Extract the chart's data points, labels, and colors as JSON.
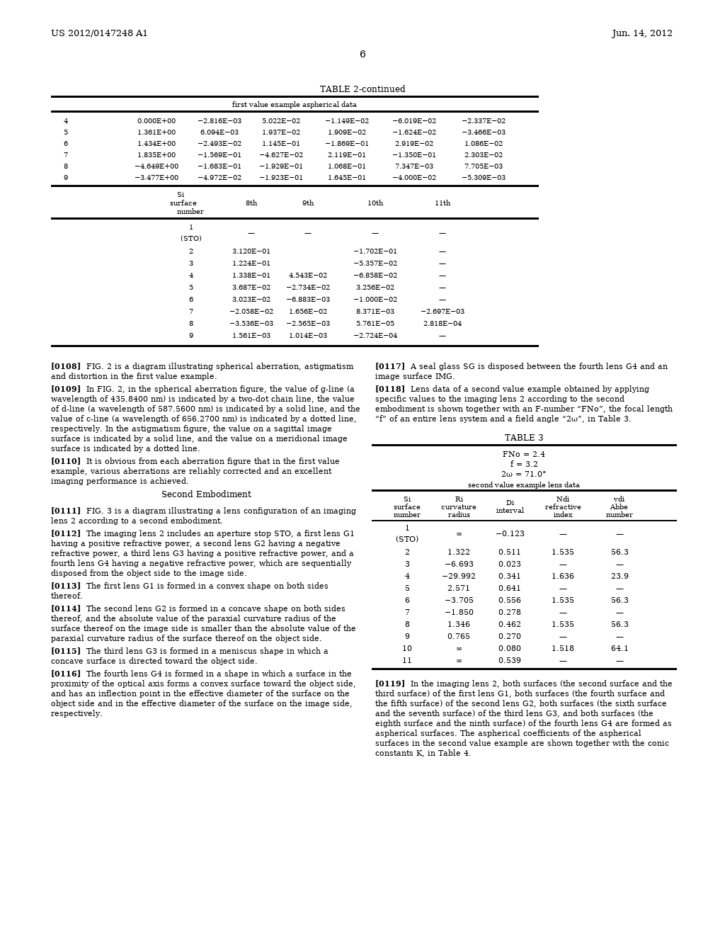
{
  "header_left": "US 2012/0147248 A1",
  "header_right": "Jun. 14, 2012",
  "page_number": "6",
  "table2_title": "TABLE 2-continued",
  "table2_subtitle": "first value example aspherical data",
  "table2_upper_rows": [
    [
      "4",
      "0.000E+00",
      "−2.816E−03",
      "5.022E−02",
      "−1.149E−02",
      "−6.019E−02",
      "−2.337E−02"
    ],
    [
      "5",
      "1.361E+00",
      "6.094E−03",
      "1.937E−02",
      "1.909E−02",
      "−1.624E−02",
      "−3.466E−03"
    ],
    [
      "6",
      "1.434E+00",
      "−2.493E−02",
      "1.145E−01",
      "−1.869E−01",
      "2.919E−02",
      "1.086E−02"
    ],
    [
      "7",
      "1.835E+00",
      "−1.569E−01",
      "−4.627E−02",
      "2.119E−01",
      "−1.350E−01",
      "2.303E−02"
    ],
    [
      "8",
      "−4.649E+00",
      "−1.683E−01",
      "−1.929E−01",
      "1.068E−01",
      "7.347E−03",
      "7.705E−03"
    ],
    [
      "9",
      "−3.477E+00",
      "−4.972E−02",
      "−1.923E−01",
      "1.645E−01",
      "−4.000E−02",
      "−5.309E−03"
    ]
  ],
  "table2_lower_col_headers": [
    "8th",
    "9th",
    "10th",
    "11th"
  ],
  "table2_lower_rows": [
    [
      "1",
      "(STO)",
      "—",
      "—",
      "—",
      "—"
    ],
    [
      "2",
      "",
      "3.120E−01",
      "",
      "−1.702E−01",
      "—"
    ],
    [
      "3",
      "",
      "1.224E−01",
      "",
      "−5.357E−02",
      "—"
    ],
    [
      "4",
      "",
      "1.338E−01",
      "4.543E−02",
      "−6.858E−02",
      "—"
    ],
    [
      "5",
      "",
      "3.687E−02",
      "−2.734E−02",
      "3.256E−02",
      "—"
    ],
    [
      "6",
      "",
      "3.023E−02",
      "−6.883E−03",
      "−1.000E−02",
      "—"
    ],
    [
      "7",
      "",
      "−2.058E−02",
      "1.656E−02",
      "8.371E−03",
      "−2.697E−03"
    ],
    [
      "8",
      "",
      "−3.536E−03",
      "−2.565E−03",
      "5.761E−05",
      "2.818E−04"
    ],
    [
      "9",
      "",
      "1.561E−03",
      "1.014E−03",
      "−2.724E−04",
      "—"
    ]
  ],
  "paragraphs_left": [
    {
      "tag": "[0108]",
      "text": "FIG. 2 is a diagram illustrating spherical aberration, astigmatism and distortion in the first value example."
    },
    {
      "tag": "[0109]",
      "text": "In FIG. 2, in the spherical aberration figure, the value of g-line (a wavelength of 435.8400 nm) is indicated by a two-dot chain line, the value of d-line (a wavelength of 587.5600 nm) is indicated by a solid line, and the value of c-line (a wavelength of 656.2700 nm) is indicated by a dotted line, respectively. In the astigmatism figure, the value on a sagittal image surface is indicated by a solid line, and the value on a meridional image surface is indicated by a dotted line."
    },
    {
      "tag": "[0110]",
      "text": "It is obvious from each aberration figure that in the first value example, various aberrations are reliably corrected and an excellent imaging performance is achieved."
    },
    {
      "tag": "center",
      "text": "Second Embodiment"
    },
    {
      "tag": "[0111]",
      "text": "FIG. 3 is a diagram illustrating a lens configuration of an imaging lens 2 according to a second embodiment."
    },
    {
      "tag": "[0112]",
      "text": "The imaging lens 2 includes an aperture stop STO, a first lens G1 having a positive refractive power, a second lens G2 having a negative refractive power, a third lens G3 having a positive refractive power, and a fourth lens G4 having a negative refractive power, which are sequentially disposed from the object side to the image side."
    },
    {
      "tag": "[0113]",
      "text": "The first lens G1 is formed in a convex shape on both sides thereof."
    },
    {
      "tag": "[0114]",
      "text": "The second lens G2 is formed in a concave shape on both sides thereof, and the absolute value of the paraxial curvature radius of the surface thereof on the image side is smaller than the absolute value of the paraxial curvature radius of the surface thereof on the object side."
    },
    {
      "tag": "[0115]",
      "text": "The third lens G3 is formed in a meniscus shape in which a concave surface is directed toward the object side."
    },
    {
      "tag": "[0116]",
      "text": "The fourth lens G4 is formed in a shape in which a surface in the proximity of the optical axis forms a convex surface toward the object side, and has an inflection point in the effective diameter of the surface on the object side and in the effective diameter of the surface on the image side, respectively."
    }
  ],
  "paragraphs_right_top": [
    {
      "tag": "[0117]",
      "text": "A seal glass SG is disposed between the fourth lens G4 and an image surface IMG."
    },
    {
      "tag": "[0118]",
      "text": "Lens data of a second value example obtained by applying specific values to the imaging lens 2 according to the second embodiment is shown together with an F-number “FNo”, the focal length “f” of an entire lens system and a field angle “2ω”, in Table 3."
    }
  ],
  "table3_title": "TABLE 3",
  "table3_params": [
    "FNo = 2.4",
    "f = 3.2",
    "2ω = 71.0°"
  ],
  "table3_subtitle": "second value example lens data",
  "table3_rows": [
    [
      "1",
      "(STO)",
      "∞",
      "−0.123",
      "—",
      "—"
    ],
    [
      "2",
      "",
      "1.322",
      "0.511",
      "1.535",
      "56.3"
    ],
    [
      "3",
      "",
      "−6.693",
      "0.023",
      "—",
      "—"
    ],
    [
      "4",
      "",
      "−29.992",
      "0.341",
      "1.636",
      "23.9"
    ],
    [
      "5",
      "",
      "2.571",
      "0.641",
      "—",
      "—"
    ],
    [
      "6",
      "",
      "−3.705",
      "0.556",
      "1.535",
      "56.3"
    ],
    [
      "7",
      "",
      "−1.850",
      "0.278",
      "—",
      "—"
    ],
    [
      "8",
      "",
      "1.346",
      "0.462",
      "1.535",
      "56.3"
    ],
    [
      "9",
      "",
      "0.765",
      "0.270",
      "—",
      "—"
    ],
    [
      "10",
      "",
      "∞",
      "0.080",
      "1.518",
      "64.1"
    ],
    [
      "11",
      "",
      "∞",
      "0.539",
      "—",
      "—"
    ]
  ],
  "paragraph_0119": {
    "tag": "[0119]",
    "text": "In the imaging lens 2, both surfaces (the second surface and the third surface) of the first lens G1, both surfaces (the fourth surface and the fifth surface) of the second lens G2, both surfaces (the sixth surface and the seventh surface) of the third lens G3, and both surfaces (the eighth surface and the ninth surface) of the fourth lens G4 are formed as aspherical surfaces. The aspherical coefficients of the aspherical surfaces in the second value example are shown together with the conic constants K, in Table 4."
  }
}
